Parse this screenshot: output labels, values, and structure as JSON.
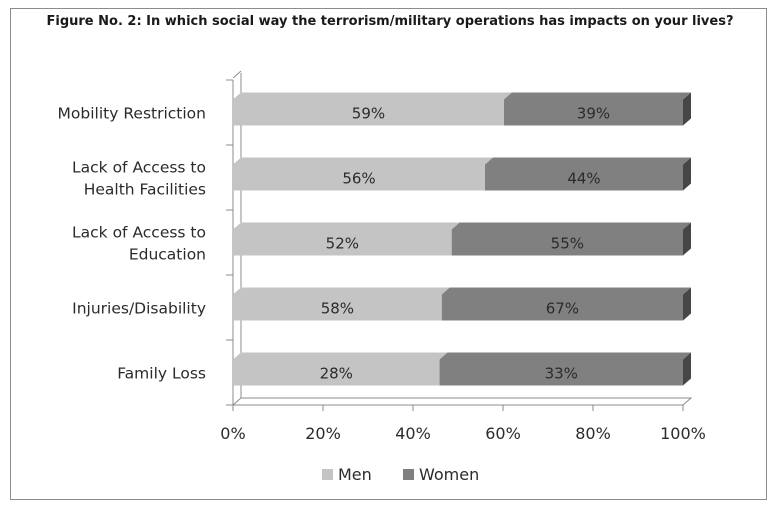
{
  "chart_data": {
    "type": "bar",
    "orientation": "horizontal",
    "stacked": "percent",
    "title": "Figure No. 2: In which social way the terrorism/military operations has impacts on your lives?",
    "categories": [
      [
        "Mobility Restriction"
      ],
      [
        "Lack of Access to",
        "Health Facilities"
      ],
      [
        "Lack of Access to",
        "Education"
      ],
      [
        "Injuries/Disability"
      ],
      [
        "Family Loss"
      ]
    ],
    "series": [
      {
        "name": "Men",
        "values": [
          59,
          56,
          52,
          58,
          28
        ],
        "labels": [
          "59%",
          "56%",
          "52%",
          "58%",
          "28%"
        ],
        "color": "#c4c4c4"
      },
      {
        "name": "Women",
        "values": [
          39,
          44,
          55,
          67,
          33
        ],
        "labels": [
          "39%",
          "44%",
          "55%",
          "67%",
          "33%"
        ],
        "color": "#808080"
      }
    ],
    "xticks": [
      "0%",
      "20%",
      "40%",
      "60%",
      "80%",
      "100%"
    ],
    "xlim": [
      0,
      100
    ],
    "legend": "bottom",
    "grid": false
  }
}
